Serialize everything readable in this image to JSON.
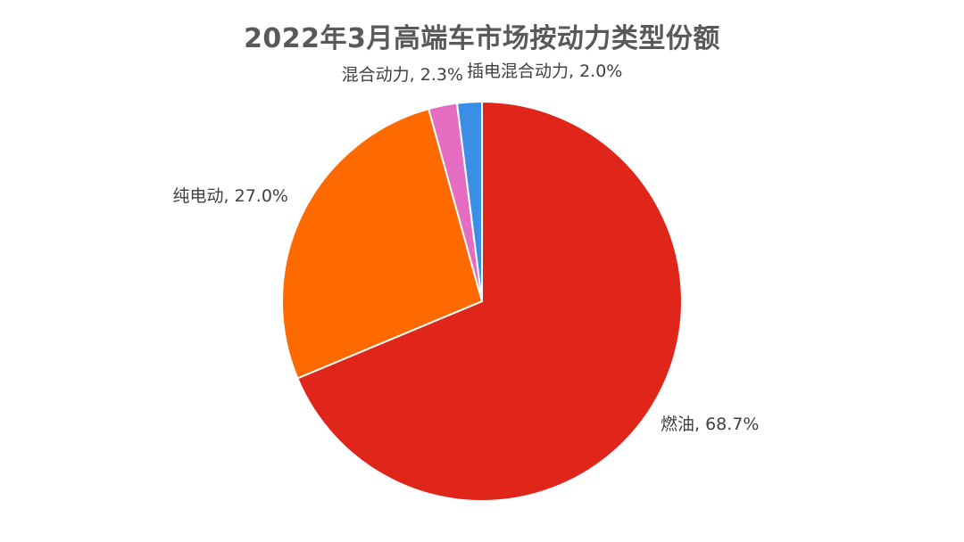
{
  "chart_data": {
    "type": "pie",
    "title": "2022年3月高端车市场按动力类型份额",
    "slices": [
      {
        "label": "燃油",
        "value": 68.7,
        "display": "68.7%",
        "color": "#E0251B"
      },
      {
        "label": "纯电动",
        "value": 27.0,
        "display": "27.0%",
        "color": "#FF6A00"
      },
      {
        "label": "混合动力",
        "value": 2.3,
        "display": "2.3%",
        "color": "#E56DC1"
      },
      {
        "label": "插电混合动力",
        "value": 2.0,
        "display": "2.0%",
        "color": "#3A8EE6"
      }
    ],
    "start": "12 o'clock",
    "direction": "clockwise",
    "data_labels": "outside: category, percentage",
    "legend": "none"
  }
}
